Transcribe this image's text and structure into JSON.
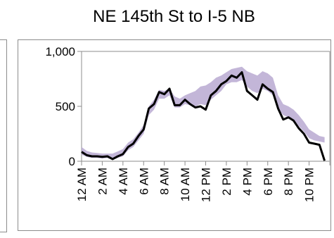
{
  "chart_data": {
    "type": "line",
    "title": "NE 145th St to I-5 NB",
    "xlabel": "",
    "ylabel": "",
    "ylim": [
      0,
      1000
    ],
    "yticks": [
      {
        "value": 0,
        "label": "0"
      },
      {
        "value": 500,
        "label": "500"
      },
      {
        "value": 1000,
        "label": "1,000"
      }
    ],
    "xticks": [
      "12 AM",
      "2 AM",
      "4 AM",
      "6 AM",
      "8 AM",
      "10 AM",
      "12 PM",
      "2 PM",
      "4 PM",
      "6 PM",
      "8 PM",
      "10 PM"
    ],
    "x_hours": [
      0,
      0.5,
      1,
      1.5,
      2,
      2.5,
      3,
      3.5,
      4,
      4.5,
      5,
      5.5,
      6,
      6.5,
      7,
      7.5,
      8,
      8.5,
      9,
      9.5,
      10,
      10.5,
      11,
      11.5,
      12,
      12.5,
      13,
      13.5,
      14,
      14.5,
      15,
      15.5,
      16,
      16.5,
      17,
      17.5,
      18,
      18.5,
      19,
      19.5,
      20,
      20.5,
      21,
      21.5,
      22,
      22.5,
      23,
      23.5
    ],
    "series": [
      {
        "role": "line",
        "color": "#000000",
        "values": [
          85,
          55,
          45,
          45,
          40,
          45,
          20,
          45,
          65,
          130,
          160,
          230,
          290,
          480,
          520,
          630,
          610,
          660,
          510,
          510,
          560,
          520,
          490,
          500,
          470,
          600,
          640,
          700,
          730,
          780,
          760,
          810,
          640,
          600,
          560,
          700,
          660,
          630,
          480,
          380,
          400,
          370,
          300,
          250,
          170,
          160,
          150,
          5
        ]
      },
      {
        "role": "band-low",
        "color": "#b9a9d1",
        "values": [
          60,
          40,
          30,
          30,
          25,
          30,
          10,
          30,
          45,
          100,
          130,
          190,
          250,
          420,
          470,
          570,
          570,
          600,
          490,
          490,
          520,
          510,
          500,
          520,
          510,
          560,
          600,
          640,
          700,
          720,
          720,
          740,
          680,
          640,
          620,
          660,
          640,
          600,
          480,
          420,
          400,
          380,
          320,
          270,
          210,
          190,
          180,
          170
        ]
      },
      {
        "role": "band-high",
        "color": "#b9a9d1",
        "values": [
          130,
          95,
          80,
          75,
          70,
          70,
          70,
          90,
          110,
          170,
          200,
          260,
          330,
          500,
          560,
          650,
          640,
          660,
          590,
          570,
          600,
          620,
          640,
          680,
          690,
          720,
          760,
          780,
          810,
          840,
          850,
          860,
          820,
          800,
          780,
          820,
          800,
          760,
          600,
          520,
          500,
          470,
          420,
          360,
          290,
          260,
          230,
          220
        ]
      }
    ]
  }
}
